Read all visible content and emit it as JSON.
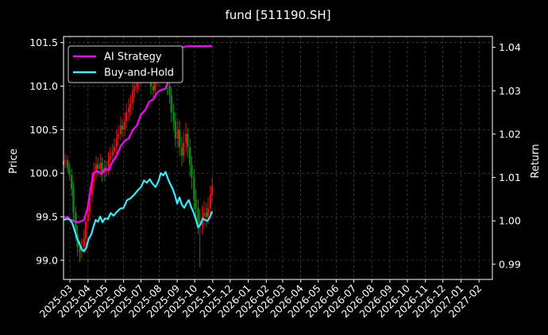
{
  "chart_data": {
    "type": "line",
    "title": "fund [511190.SH]",
    "ylabel_left": "Price",
    "ylabel_right": "Return",
    "ylim_left": [
      98.78,
      101.57
    ],
    "ylim_right": [
      0.9865,
      1.0425
    ],
    "yticks_left": [
      "99.0",
      "99.5",
      "100.0",
      "100.5",
      "101.0",
      "101.5"
    ],
    "yticks_right": [
      "0.99",
      "1.00",
      "1.01",
      "1.02",
      "1.03",
      "1.04"
    ],
    "x_ticks": [
      "2025-03",
      "2025-04",
      "2025-05",
      "2025-06",
      "2025-07",
      "2025-08",
      "2025-09",
      "2025-10",
      "2025-11",
      "2025-12",
      "2026-01",
      "2026-02",
      "2026-03",
      "2026-04",
      "2026-05",
      "2026-06",
      "2026-07",
      "2026-08",
      "2026-09",
      "2026-10",
      "2026-11",
      "2026-12",
      "2027-01",
      "2027-02"
    ],
    "grid": true,
    "legend_position": "top-left",
    "colors": {
      "background": "#000000",
      "ai": "#ff00ff",
      "bh": "#33eeff",
      "up": "#dd1111",
      "down": "#118811",
      "grid": "#555555"
    },
    "series": [
      {
        "name": "AI Strategy",
        "axis": "right",
        "x": [
          "2025-02-18",
          "2025-02-25",
          "2025-03-01",
          "2025-03-07",
          "2025-03-12",
          "2025-03-18",
          "2025-03-25",
          "2025-03-31",
          "2025-04-05",
          "2025-04-10",
          "2025-04-17",
          "2025-04-24",
          "2025-04-30",
          "2025-05-07",
          "2025-05-12",
          "2025-05-20",
          "2025-05-27",
          "2025-06-03",
          "2025-06-10",
          "2025-06-17",
          "2025-06-24",
          "2025-07-01",
          "2025-07-08",
          "2025-07-15",
          "2025-07-22",
          "2025-07-29",
          "2025-08-05",
          "2025-08-12",
          "2025-08-19",
          "2025-08-26",
          "2025-09-02",
          "2025-09-09",
          "2025-09-16",
          "2025-09-23",
          "2025-09-30",
          "2025-10-10",
          "2025-10-20",
          "2025-10-31"
        ],
        "values": [
          1.0008,
          1.0009,
          1.0003,
          1.0,
          0.9997,
          0.9998,
          1.0002,
          1.0028,
          1.007,
          1.011,
          1.0115,
          1.0108,
          1.012,
          1.0117,
          1.0134,
          1.015,
          1.0172,
          1.0185,
          1.019,
          1.021,
          1.022,
          1.0246,
          1.0255,
          1.0275,
          1.028,
          1.0296,
          1.0302,
          1.0305,
          1.0328,
          1.0358,
          1.0381,
          1.04,
          1.0402,
          1.0403,
          1.0403,
          1.0403,
          1.0403,
          1.0403
        ]
      },
      {
        "name": "Buy-and-Hold",
        "axis": "right",
        "x": [
          "2025-02-18",
          "2025-02-25",
          "2025-03-01",
          "2025-03-05",
          "2025-03-09",
          "2025-03-13",
          "2025-03-17",
          "2025-03-21",
          "2025-03-25",
          "2025-03-29",
          "2025-04-02",
          "2025-04-07",
          "2025-04-10",
          "2025-04-14",
          "2025-04-18",
          "2025-04-22",
          "2025-04-26",
          "2025-04-30",
          "2025-05-05",
          "2025-05-10",
          "2025-05-15",
          "2025-05-20",
          "2025-05-26",
          "2025-06-01",
          "2025-06-07",
          "2025-06-13",
          "2025-06-19",
          "2025-06-25",
          "2025-07-01",
          "2025-07-06",
          "2025-07-11",
          "2025-07-16",
          "2025-07-21",
          "2025-07-26",
          "2025-07-31",
          "2025-08-04",
          "2025-08-08",
          "2025-08-12",
          "2025-08-16",
          "2025-08-20",
          "2025-08-24",
          "2025-08-28",
          "2025-09-01",
          "2025-09-05",
          "2025-09-09",
          "2025-09-13",
          "2025-09-17",
          "2025-09-21",
          "2025-09-25",
          "2025-09-29",
          "2025-10-03",
          "2025-10-07",
          "2025-10-11",
          "2025-10-15",
          "2025-10-19",
          "2025-10-23",
          "2025-10-27",
          "2025-10-31"
        ],
        "values": [
          1.0002,
          1.0005,
          1.0002,
          0.9995,
          0.9978,
          0.996,
          0.9948,
          0.9935,
          0.993,
          0.9938,
          0.9958,
          0.997,
          0.9985,
          1.0002,
          0.9998,
          1.001,
          0.9997,
          1.0006,
          1.0004,
          1.0018,
          1.0012,
          1.002,
          1.0028,
          1.003,
          1.0048,
          1.0052,
          1.006,
          1.007,
          1.0078,
          1.0093,
          1.0088,
          1.0096,
          1.0085,
          1.0078,
          1.0092,
          1.011,
          1.0105,
          1.0113,
          1.0098,
          1.0085,
          1.0075,
          1.006,
          1.004,
          1.0054,
          1.0038,
          1.003,
          1.004,
          1.0048,
          1.0032,
          1.002,
          1.0005,
          0.9985,
          0.9992,
          1.0005,
          1.0002,
          1.0,
          1.0008,
          1.0022
        ]
      }
    ],
    "candles": {
      "axis": "left",
      "x": [
        "2025-02-18",
        "2025-02-21",
        "2025-02-25",
        "2025-02-28",
        "2025-03-04",
        "2025-03-07",
        "2025-03-11",
        "2025-03-14",
        "2025-03-18",
        "2025-03-21",
        "2025-03-25",
        "2025-03-28",
        "2025-04-01",
        "2025-04-04",
        "2025-04-08",
        "2025-04-11",
        "2025-04-15",
        "2025-04-18",
        "2025-04-22",
        "2025-04-25",
        "2025-04-29",
        "2025-05-02",
        "2025-05-06",
        "2025-05-09",
        "2025-05-13",
        "2025-05-16",
        "2025-05-20",
        "2025-05-23",
        "2025-05-27",
        "2025-05-30",
        "2025-06-03",
        "2025-06-06",
        "2025-06-10",
        "2025-06-13",
        "2025-06-17",
        "2025-06-20",
        "2025-06-24",
        "2025-06-27",
        "2025-07-01",
        "2025-07-04",
        "2025-07-08",
        "2025-07-11",
        "2025-07-15",
        "2025-07-18",
        "2025-07-22",
        "2025-07-25",
        "2025-07-29",
        "2025-08-01",
        "2025-08-05",
        "2025-08-08",
        "2025-08-12",
        "2025-08-15",
        "2025-08-19",
        "2025-08-22",
        "2025-08-26",
        "2025-08-29",
        "2025-09-02",
        "2025-09-05",
        "2025-09-09",
        "2025-09-12",
        "2025-09-16",
        "2025-09-19",
        "2025-09-23",
        "2025-09-26",
        "2025-09-30",
        "2025-10-03",
        "2025-10-07",
        "2025-10-10",
        "2025-10-14",
        "2025-10-17",
        "2025-10-21",
        "2025-10-24",
        "2025-10-28",
        "2025-10-31"
      ],
      "open": [
        100.1,
        100.14,
        100.15,
        100.06,
        99.98,
        99.82,
        99.55,
        99.3,
        99.15,
        99.1,
        99.15,
        99.25,
        99.45,
        99.55,
        99.75,
        99.9,
        100.0,
        100.1,
        100.05,
        100.12,
        100.0,
        100.06,
        100.05,
        100.15,
        100.2,
        100.25,
        100.3,
        100.4,
        100.45,
        100.55,
        100.5,
        100.6,
        100.7,
        100.75,
        100.8,
        100.95,
        101.0,
        101.05,
        101.1,
        101.15,
        101.25,
        101.3,
        101.2,
        101.15,
        101.0,
        100.95,
        101.1,
        101.2,
        101.25,
        101.3,
        101.2,
        101.15,
        101.0,
        100.9,
        100.7,
        100.6,
        100.4,
        100.5,
        100.3,
        100.2,
        100.35,
        100.45,
        100.3,
        100.1,
        99.95,
        99.7,
        99.6,
        99.45,
        99.4,
        99.5,
        99.55,
        99.5,
        99.6,
        99.75
      ],
      "close": [
        100.14,
        100.15,
        100.06,
        99.98,
        99.82,
        99.55,
        99.3,
        99.15,
        99.1,
        99.15,
        99.25,
        99.45,
        99.55,
        99.75,
        99.9,
        100.0,
        100.1,
        100.05,
        100.12,
        100.0,
        100.06,
        100.05,
        100.15,
        100.2,
        100.25,
        100.3,
        100.4,
        100.45,
        100.55,
        100.5,
        100.6,
        100.7,
        100.75,
        100.8,
        100.95,
        101.0,
        101.05,
        101.1,
        101.15,
        101.25,
        101.3,
        101.2,
        101.15,
        101.0,
        100.95,
        101.1,
        101.2,
        101.25,
        101.3,
        101.2,
        101.15,
        101.0,
        100.9,
        100.7,
        100.6,
        100.4,
        100.5,
        100.3,
        100.2,
        100.35,
        100.45,
        100.3,
        100.1,
        99.95,
        99.7,
        99.6,
        99.45,
        99.4,
        99.5,
        99.55,
        99.5,
        99.6,
        99.75,
        99.85
      ],
      "high": [
        100.2,
        100.22,
        100.2,
        100.12,
        100.05,
        99.9,
        99.62,
        99.4,
        99.22,
        99.25,
        99.35,
        99.55,
        99.66,
        99.85,
        100.0,
        100.12,
        100.2,
        100.18,
        100.22,
        100.18,
        100.15,
        100.14,
        100.24,
        100.3,
        100.34,
        100.4,
        100.5,
        100.55,
        100.65,
        100.62,
        100.7,
        100.8,
        100.86,
        100.9,
        101.05,
        101.1,
        101.15,
        101.2,
        101.28,
        101.36,
        101.42,
        101.38,
        101.28,
        101.2,
        101.08,
        101.2,
        101.3,
        101.36,
        101.4,
        101.38,
        101.28,
        101.24,
        101.1,
        101.0,
        100.8,
        100.7,
        100.62,
        100.6,
        100.42,
        100.48,
        100.58,
        100.52,
        100.4,
        100.2,
        100.05,
        99.82,
        99.7,
        99.58,
        99.62,
        99.68,
        99.66,
        99.72,
        99.86,
        99.95
      ],
      "low": [
        100.04,
        100.06,
        100.0,
        99.92,
        99.74,
        99.45,
        99.22,
        99.05,
        98.98,
        99.02,
        99.08,
        99.18,
        99.36,
        99.46,
        99.66,
        99.82,
        99.92,
        99.96,
        99.96,
        99.9,
        99.92,
        99.96,
        99.98,
        100.08,
        100.12,
        100.18,
        100.22,
        100.32,
        100.38,
        100.42,
        100.42,
        100.52,
        100.6,
        100.66,
        100.72,
        100.86,
        100.92,
        100.96,
        101.02,
        101.08,
        101.18,
        101.1,
        101.06,
        100.9,
        100.86,
        100.86,
        101.0,
        101.12,
        101.16,
        101.1,
        101.06,
        100.9,
        100.8,
        100.58,
        100.48,
        100.3,
        100.3,
        100.2,
        100.08,
        100.12,
        100.24,
        100.18,
        99.96,
        99.82,
        99.58,
        99.44,
        99.3,
        98.92,
        99.3,
        99.36,
        99.38,
        99.42,
        99.52,
        99.66
      ]
    }
  },
  "legend": {
    "ai_label": "AI Strategy",
    "bh_label": "Buy-and-Hold"
  }
}
